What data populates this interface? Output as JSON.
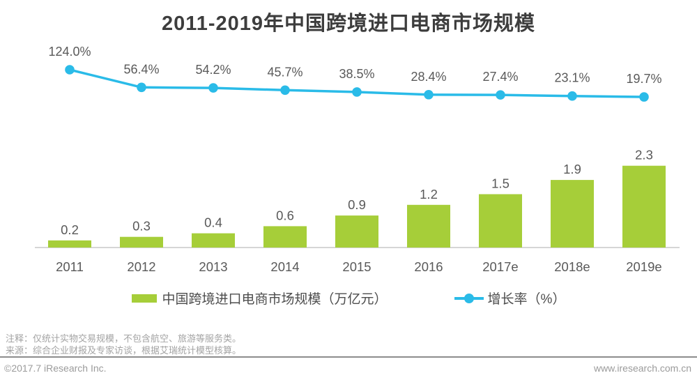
{
  "title": "2011-2019年中国跨境进口电商市场规模",
  "chart_data": {
    "type": "bar",
    "combo": "bar+line",
    "title": "2011-2019年中国跨境进口电商市场规模",
    "categories": [
      "2011",
      "2012",
      "2013",
      "2014",
      "2015",
      "2016",
      "2017e",
      "2018e",
      "2019e"
    ],
    "series": [
      {
        "name": "中国跨境进口电商市场规模（万亿元）",
        "type": "bar",
        "values": [
          0.2,
          0.3,
          0.4,
          0.6,
          0.9,
          1.2,
          1.5,
          1.9,
          2.3
        ],
        "color": "#a6ce39"
      },
      {
        "name": "增长率（%）",
        "type": "line",
        "values": [
          124.0,
          56.4,
          54.2,
          45.7,
          38.5,
          28.4,
          27.4,
          23.1,
          19.7
        ],
        "unit": "%",
        "color": "#2abbe8"
      }
    ],
    "xlabel": "",
    "ylabel": "",
    "grid": false,
    "legend_position": "bottom",
    "data_labels": true,
    "label_color": "#595959",
    "axis_color": "#c8c8c8"
  },
  "legend": {
    "bar_label": "中国跨境进口电商市场规模（万亿元）",
    "line_label": "增长率（%）"
  },
  "notes": {
    "line1": "注释：仅统计实物交易规模，不包含航空、旅游等服务类。",
    "line2": "来源：综合企业财报及专家访谈，根据艾瑞统计模型核算。"
  },
  "footer": {
    "left": "©2017.7 iResearch Inc.",
    "right": "www.iresearch.com.cn"
  },
  "colors": {
    "bar": "#a6ce39",
    "line": "#2abbe8",
    "title_text": "#3d3d3d",
    "label_text": "#595959",
    "note_text": "#a3a3a3"
  }
}
